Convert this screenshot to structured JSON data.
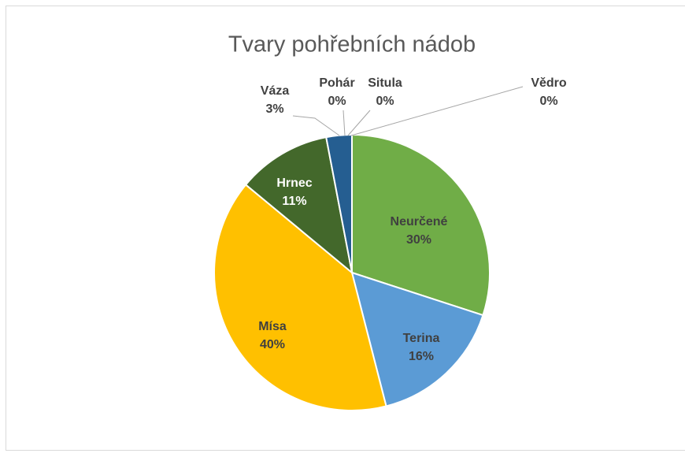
{
  "chart_data": {
    "type": "pie",
    "title": "Tvary pohřebních nádob",
    "categories": [
      "Neurčené",
      "Terina",
      "Mísa",
      "Hrnec",
      "Váza",
      "Pohár",
      "Situla",
      "Vědro"
    ],
    "values": [
      30,
      16,
      40,
      11,
      3,
      0,
      0,
      0
    ],
    "value_labels": [
      "30%",
      "16%",
      "40%",
      "11%",
      "3%",
      "0%",
      "0%",
      "0%"
    ],
    "colors": [
      "#70ad47",
      "#5b9bd5",
      "#ffc000",
      "#43682b",
      "#255e91",
      "#9e480e",
      "#a5a5a5",
      "#7f7f7f"
    ]
  }
}
